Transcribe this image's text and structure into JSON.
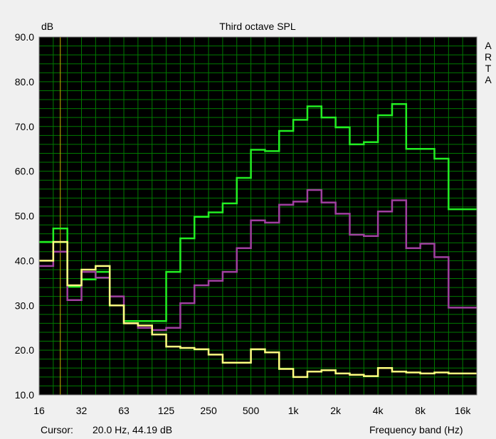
{
  "chart_data": {
    "type": "line",
    "title": "Third octave SPL",
    "ylabel": "dB",
    "xlabel": "Frequency band (Hz)",
    "ylim": [
      10.0,
      90.0
    ],
    "y_ticks": [
      "10.0",
      "20.0",
      "30.0",
      "40.0",
      "50.0",
      "60.0",
      "70.0",
      "80.0",
      "90.0"
    ],
    "x_ticks": [
      "16",
      "32",
      "63",
      "125",
      "250",
      "500",
      "1k",
      "2k",
      "4k",
      "8k",
      "16k"
    ],
    "bands": [
      "16",
      "20",
      "25",
      "31.5",
      "40",
      "50",
      "63",
      "80",
      "100",
      "125",
      "160",
      "200",
      "250",
      "315",
      "400",
      "500",
      "630",
      "800",
      "1k",
      "1.25k",
      "1.6k",
      "2k",
      "2.5k",
      "3.15k",
      "4k",
      "5k",
      "6.3k",
      "8k",
      "10k",
      "12.5k",
      "16k"
    ],
    "step_style": "third-octave steps",
    "grid": true,
    "watermark": "ARTA",
    "cursor": {
      "band": "20",
      "value_hz": 20.0
    },
    "colors": {
      "background": "#000000",
      "grid": "#007a00",
      "cursor": "#c8b400",
      "frame": "#f0f0f0"
    },
    "series": [
      {
        "color": "#22ee22",
        "values": [
          44.2,
          47.2,
          34.2,
          35.8,
          37.5,
          30.0,
          26.5,
          26.5,
          26.5,
          37.5,
          45.0,
          49.8,
          50.8,
          52.8,
          58.5,
          64.8,
          64.5,
          69.0,
          71.5,
          74.5,
          72.0,
          69.8,
          66.0,
          66.5,
          72.5,
          75.0,
          65.0,
          65.0,
          62.8,
          51.5,
          51.5
        ]
      },
      {
        "color": "#a040a0",
        "values": [
          38.8,
          42.0,
          31.2,
          37.5,
          36.2,
          32.0,
          26.0,
          25.0,
          24.5,
          25.0,
          30.5,
          34.5,
          35.5,
          37.5,
          42.8,
          49.0,
          48.5,
          52.5,
          53.2,
          55.8,
          53.0,
          50.5,
          45.8,
          45.5,
          51.0,
          53.5,
          42.8,
          43.8,
          40.8,
          29.5,
          29.5
        ]
      },
      {
        "color": "#ffff80",
        "values": [
          40.0,
          44.2,
          34.5,
          38.0,
          38.8,
          30.0,
          26.0,
          25.5,
          23.5,
          20.8,
          20.5,
          20.2,
          19.0,
          17.2,
          17.2,
          20.2,
          19.5,
          15.8,
          14.0,
          15.2,
          15.5,
          14.8,
          14.5,
          14.2,
          16.0,
          15.2,
          15.0,
          14.8,
          15.0,
          14.8,
          14.8
        ]
      }
    ]
  },
  "statusbar": {
    "cursor_label": "Cursor:",
    "cursor_value": "20.0 Hz, 44.19 dB",
    "frequency_label": "Frequency band (Hz)"
  }
}
